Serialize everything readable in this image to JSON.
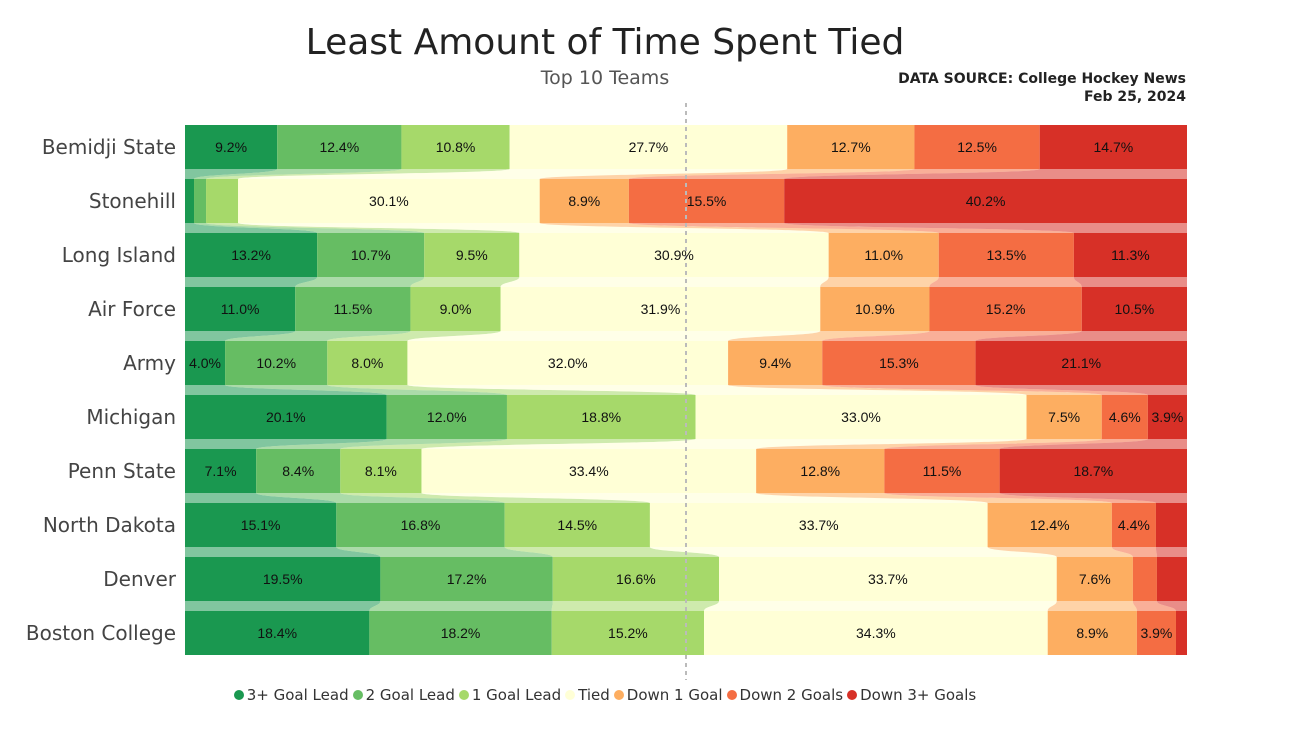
{
  "header": {
    "title": "Least Amount of Time Spent Tied",
    "subtitle": "Top 10 Teams",
    "source_line1": "DATA SOURCE: College Hockey News",
    "source_line2": "Feb 25, 2024"
  },
  "colors": {
    "3+ Goal Lead": "#1a9850",
    "2 Goal Lead": "#66bd63",
    "1 Goal Lead": "#a6d96a",
    "Tied": "#ffffd6",
    "Down 1 Goal": "#fdae61",
    "Down 2 Goals": "#f46d43",
    "Down 3+ Goals": "#d73027"
  },
  "chart_data": {
    "type": "bar",
    "orientation": "horizontal",
    "stacked": "100%",
    "categories": [
      "Bemidji State",
      "Stonehill",
      "Long Island",
      "Air Force",
      "Army",
      "Michigan",
      "Penn State",
      "North Dakota",
      "Denver",
      "Boston College"
    ],
    "series": [
      {
        "name": "3+ Goal Lead",
        "values": [
          9.2,
          0.9,
          13.2,
          11.0,
          4.0,
          20.1,
          7.1,
          15.1,
          19.5,
          18.4
        ]
      },
      {
        "name": "2 Goal Lead",
        "values": [
          12.4,
          1.2,
          10.7,
          11.5,
          10.2,
          12.0,
          8.4,
          16.8,
          17.2,
          18.2
        ]
      },
      {
        "name": "1 Goal Lead",
        "values": [
          10.8,
          3.2,
          9.5,
          9.0,
          8.0,
          18.8,
          8.1,
          14.5,
          16.6,
          15.2
        ]
      },
      {
        "name": "Tied",
        "values": [
          27.7,
          30.1,
          30.9,
          31.9,
          32.0,
          33.0,
          33.4,
          33.7,
          33.7,
          34.3
        ]
      },
      {
        "name": "Down 1 Goal",
        "values": [
          12.7,
          8.9,
          11.0,
          10.9,
          9.4,
          7.5,
          12.8,
          12.4,
          7.6,
          8.9
        ]
      },
      {
        "name": "Down 2 Goals",
        "values": [
          12.5,
          15.5,
          13.5,
          15.2,
          15.3,
          4.6,
          11.5,
          4.4,
          2.4,
          3.9
        ]
      },
      {
        "name": "Down 3+ Goals",
        "values": [
          14.7,
          40.2,
          11.3,
          10.5,
          21.1,
          3.9,
          18.7,
          3.1,
          3.0,
          1.1
        ]
      }
    ],
    "data_labels": [
      [
        "9.2%",
        "12.4%",
        "10.8%",
        "27.7%",
        "12.7%",
        "12.5%",
        "14.7%"
      ],
      [
        "",
        "",
        "",
        "30.1%",
        "8.9%",
        "15.5%",
        "40.2%"
      ],
      [
        "13.2%",
        "10.7%",
        "9.5%",
        "30.9%",
        "11.0%",
        "13.5%",
        "11.3%"
      ],
      [
        "11.0%",
        "11.5%",
        "9.0%",
        "31.9%",
        "10.9%",
        "15.2%",
        "10.5%"
      ],
      [
        "4.0%",
        "10.2%",
        "8.0%",
        "32.0%",
        "9.4%",
        "15.3%",
        "21.1%"
      ],
      [
        "20.1%",
        "12.0%",
        "18.8%",
        "33.0%",
        "7.5%",
        "4.6%",
        "3.9%"
      ],
      [
        "7.1%",
        "8.4%",
        "8.1%",
        "33.4%",
        "12.8%",
        "11.5%",
        "18.7%"
      ],
      [
        "15.1%",
        "16.8%",
        "14.5%",
        "33.7%",
        "12.4%",
        "4.4%",
        ""
      ],
      [
        "19.5%",
        "17.2%",
        "16.6%",
        "33.7%",
        "7.6%",
        "",
        ""
      ],
      [
        "18.4%",
        "18.2%",
        "15.2%",
        "34.3%",
        "8.9%",
        "3.9%",
        ""
      ]
    ],
    "xlim": [
      0,
      100
    ],
    "reference_line": "50%",
    "legend_position": "bottom",
    "grid": false
  }
}
